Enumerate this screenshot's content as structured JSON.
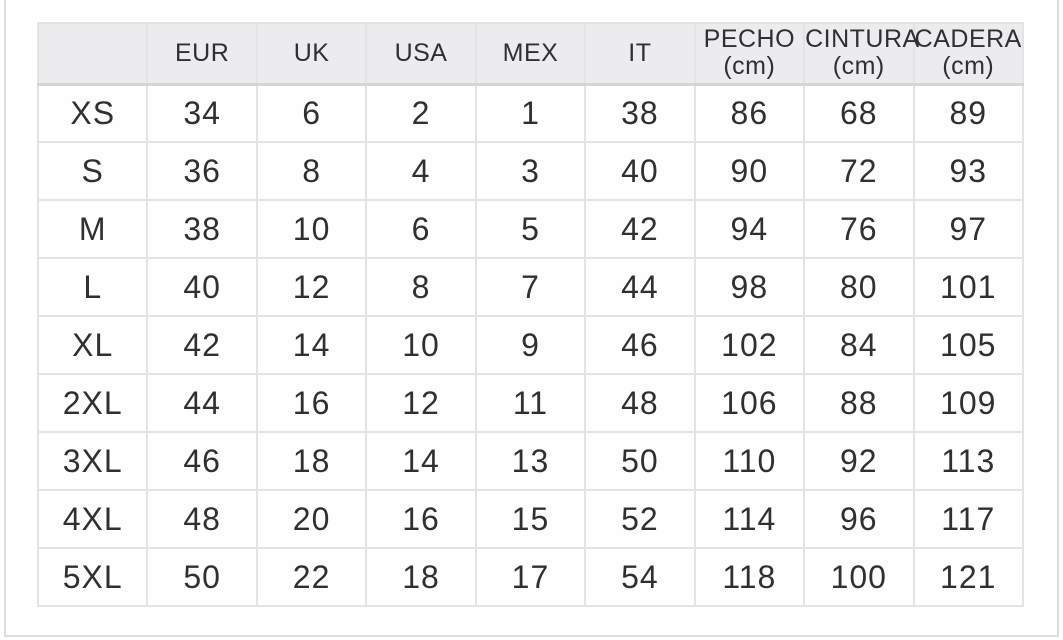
{
  "page": {
    "background": "#ffffff",
    "frame_border_color": "#dcdcdc"
  },
  "table": {
    "header_bg": "#ececee",
    "cell_border_color": "#e2e3e5",
    "header_bottom_border_color": "#d3d5d7",
    "text_color": "#2f3032",
    "columns": [
      {
        "label": ""
      },
      {
        "label": "EUR"
      },
      {
        "label": "UK"
      },
      {
        "label": "USA"
      },
      {
        "label": "MEX"
      },
      {
        "label": "IT"
      },
      {
        "label": "PECHO",
        "unit": "(cm)"
      },
      {
        "label": "CINTURA",
        "unit": "(cm)"
      },
      {
        "label": "CADERA",
        "unit": "(cm)"
      }
    ],
    "rows": [
      {
        "size": "XS",
        "values": [
          34,
          6,
          2,
          1,
          38,
          86,
          68,
          89
        ]
      },
      {
        "size": "S",
        "values": [
          36,
          8,
          4,
          3,
          40,
          90,
          72,
          93
        ]
      },
      {
        "size": "M",
        "values": [
          38,
          10,
          6,
          5,
          42,
          94,
          76,
          97
        ]
      },
      {
        "size": "L",
        "values": [
          40,
          12,
          8,
          7,
          44,
          98,
          80,
          101
        ]
      },
      {
        "size": "XL",
        "values": [
          42,
          14,
          10,
          9,
          46,
          102,
          84,
          105
        ]
      },
      {
        "size": "2XL",
        "values": [
          44,
          16,
          12,
          11,
          48,
          106,
          88,
          109
        ]
      },
      {
        "size": "3XL",
        "values": [
          46,
          18,
          14,
          13,
          50,
          110,
          92,
          113
        ]
      },
      {
        "size": "4XL",
        "values": [
          48,
          20,
          16,
          15,
          52,
          114,
          96,
          117
        ]
      },
      {
        "size": "5XL",
        "values": [
          50,
          22,
          18,
          17,
          54,
          118,
          100,
          121
        ]
      }
    ]
  }
}
